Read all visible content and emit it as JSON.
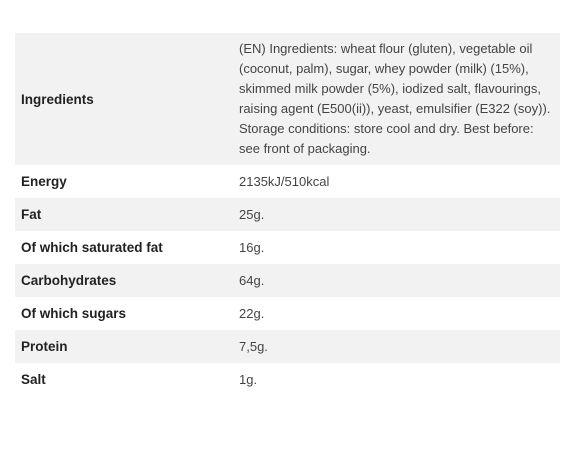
{
  "nutrition_table": {
    "rows": [
      {
        "label": "Ingredients",
        "value": "(EN) Ingredients: wheat flour (gluten), vegetable oil (coconut, palm), sugar, whey powder (milk) (15%), skimmed milk powder (5%), iodized salt, flavourings, raising agent (E500(ii)), yeast, emulsifier (E322 (soy)). Storage conditions: store cool and dry. Best before: see front of packaging."
      },
      {
        "label": "Energy",
        "value": "2135kJ/510kcal"
      },
      {
        "label": "Fat",
        "value": "25g."
      },
      {
        "label": "Of which saturated fat",
        "value": "16g."
      },
      {
        "label": "Carbohydrates",
        "value": "64g."
      },
      {
        "label": "Of which sugars",
        "value": "22g."
      },
      {
        "label": "Protein",
        "value": "7,5g."
      },
      {
        "label": "Salt",
        "value": "1g."
      }
    ]
  }
}
